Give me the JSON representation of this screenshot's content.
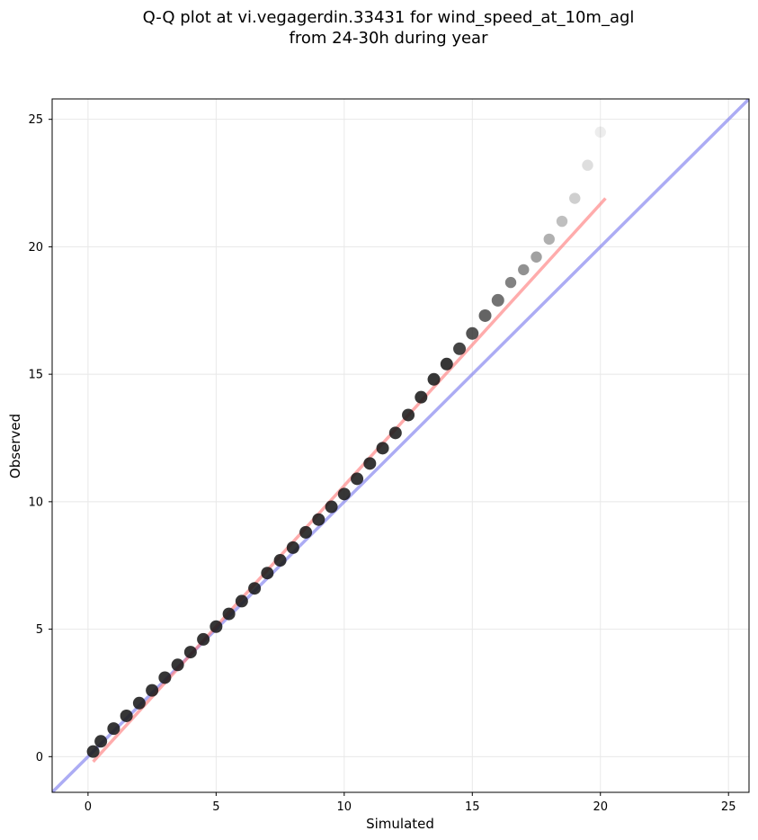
{
  "chart_data": {
    "type": "scatter",
    "title": "Q-Q plot at vi.vegagerdin.33431 for wind_speed_at_10m_agl",
    "subtitle": "from 24-30h during year",
    "xlabel": "Simulated",
    "ylabel": "Observed",
    "xlim": [
      -1.4,
      25.8
    ],
    "ylim": [
      -1.4,
      25.8
    ],
    "xticks": [
      0,
      5,
      10,
      15,
      20,
      25
    ],
    "yticks": [
      0,
      5,
      10,
      15,
      20,
      25
    ],
    "grid": true,
    "quantile_points": {
      "simulated": [
        0.2,
        0.5,
        1.0,
        1.5,
        2.0,
        2.5,
        3.0,
        3.5,
        4.0,
        4.5,
        5.0,
        5.5,
        6.0,
        6.5,
        7.0,
        7.5,
        8.0,
        8.5,
        9.0,
        9.5,
        10.0,
        10.5,
        11.0,
        11.5,
        12.0,
        12.5,
        13.0,
        13.5,
        14.0,
        14.5,
        15.0,
        15.5,
        16.0,
        16.5,
        17.0,
        17.5,
        18.0,
        18.5,
        19.0,
        19.5,
        20.0
      ],
      "observed": [
        0.2,
        0.6,
        1.1,
        1.6,
        2.1,
        2.6,
        3.1,
        3.6,
        4.1,
        4.6,
        5.1,
        5.6,
        6.1,
        6.6,
        7.2,
        7.7,
        8.2,
        8.8,
        9.3,
        9.8,
        10.3,
        10.9,
        11.5,
        12.1,
        12.7,
        13.4,
        14.1,
        14.8,
        15.4,
        16.0,
        16.6,
        17.3,
        17.9,
        18.6,
        19.1,
        19.6,
        20.3,
        21.0,
        21.9,
        23.2,
        24.5
      ]
    },
    "fit_line": {
      "x": [
        0.2,
        20.2
      ],
      "y": [
        -0.2,
        21.9
      ],
      "color": "#ff8080"
    },
    "reference_line": {
      "x": [
        -1.4,
        25.8
      ],
      "y": [
        -1.4,
        25.8
      ],
      "color": "#8080ee"
    }
  }
}
